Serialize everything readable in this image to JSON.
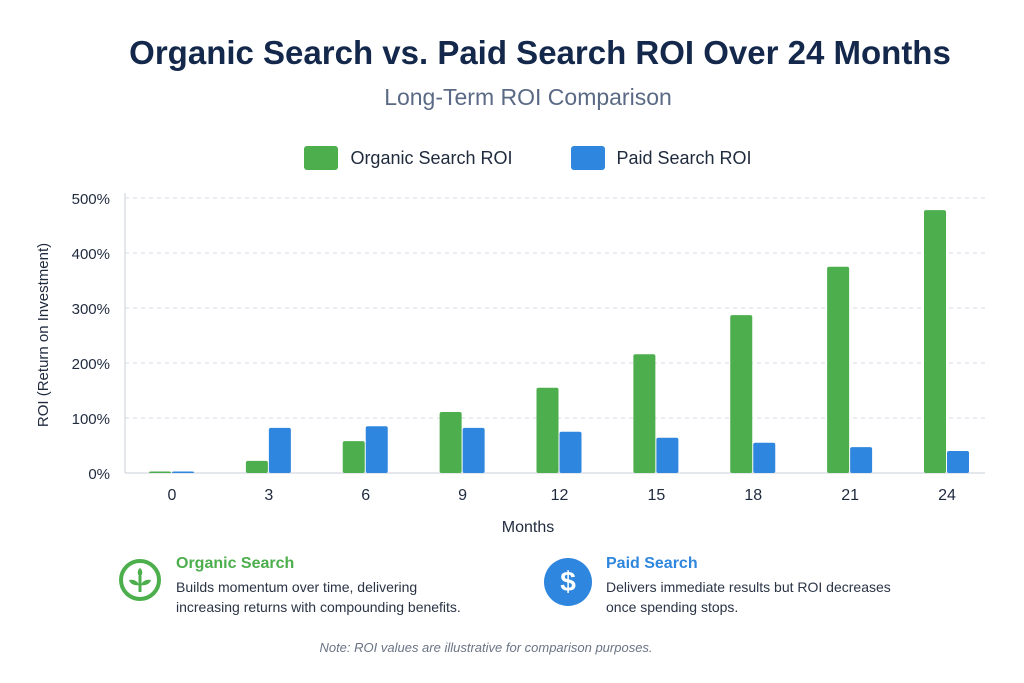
{
  "chart_data": {
    "type": "bar",
    "title": "Organic Search vs. Paid Search ROI Over 24 Months",
    "subtitle": "Long-Term ROI Comparison",
    "xlabel": "Months",
    "ylabel": "ROI (Return on Investment)",
    "categories": [
      "0",
      "3",
      "6",
      "9",
      "12",
      "15",
      "18",
      "21",
      "24"
    ],
    "yticks": [
      "0%",
      "100%",
      "200%",
      "300%",
      "400%",
      "500%"
    ],
    "ylim": [
      0,
      500
    ],
    "grid": true,
    "legend_position": "top",
    "series": [
      {
        "name": "Organic Search ROI",
        "color": "#4cae4c",
        "values": [
          0,
          22,
          58,
          111,
          155,
          216,
          287,
          375,
          478
        ]
      },
      {
        "name": "Paid Search ROI",
        "color": "#2f86de",
        "values": [
          0,
          82,
          85,
          82,
          75,
          64,
          55,
          47,
          40
        ]
      }
    ]
  },
  "cards": [
    {
      "title": "Organic Search",
      "line1": "Builds momentum over time, delivering",
      "line2": "increasing returns with compounding benefits.",
      "icon": "sprout-icon",
      "color": "#4cae4c"
    },
    {
      "title": "Paid Search",
      "line1": "Delivers immediate results but ROI decreases",
      "line2": "once spending stops.",
      "icon": "dollar-icon",
      "color": "#2f86de",
      "symbol": "$"
    }
  ],
  "note": "Note: ROI values are illustrative for comparison purposes."
}
